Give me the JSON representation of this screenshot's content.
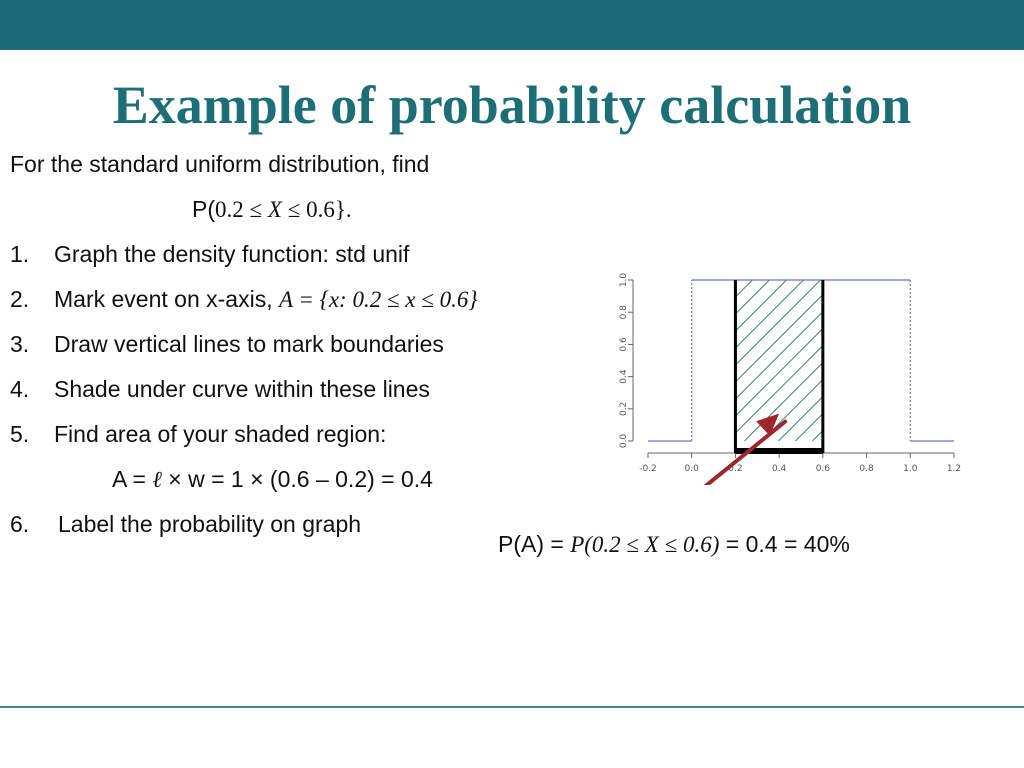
{
  "slide": {
    "title": "Example of probability calculation",
    "intro": "For the standard uniform distribution, find",
    "prob_expr": {
      "prefix": "P(",
      "lower": "0.2",
      "le1": " ≤ ",
      "var": "X",
      "le2": " ≤ ",
      "upper": "0.6",
      "suffix": "}."
    },
    "steps": [
      {
        "n": "1.",
        "text": "Graph the density function: std unif"
      },
      {
        "n": "2.",
        "text": "Mark event on x-axis, ",
        "math": "A = {x: 0.2 ≤ x ≤ 0.6}"
      },
      {
        "n": "3.",
        "text": "Draw vertical lines to mark boundaries"
      },
      {
        "n": "4.",
        "text": "Shade under curve within these lines"
      },
      {
        "n": "5.",
        "text": "Find area of your shaded region:"
      },
      {
        "n": "6.",
        "text": "Label the probability on graph"
      }
    ],
    "area_formula": {
      "start": "A = ",
      "ell": "ℓ",
      "rest": " × w = 1 × (0.6 – 0.2) = 0.4"
    },
    "result": {
      "lead": "P(A) = ",
      "expr": "P(0.2 ≤ X ≤ 0.6)",
      "tail": " = 0.4 = 40%"
    }
  },
  "graph": {
    "x_ticks": [
      "-0.2",
      "0.0",
      "0.2",
      "0.4",
      "0.6",
      "0.8",
      "1.0",
      "1.2"
    ],
    "y_ticks": [
      "0.0",
      "0.2",
      "0.4",
      "0.6",
      "0.8",
      "1.0"
    ],
    "x_range": [
      -0.2,
      1.2
    ],
    "y_range": [
      0,
      1
    ],
    "density_color": "#7070d0",
    "hatch_color": "#2f7a7a",
    "arrow_color": "#a0262e",
    "event_interval": [
      0.2,
      0.6
    ]
  }
}
